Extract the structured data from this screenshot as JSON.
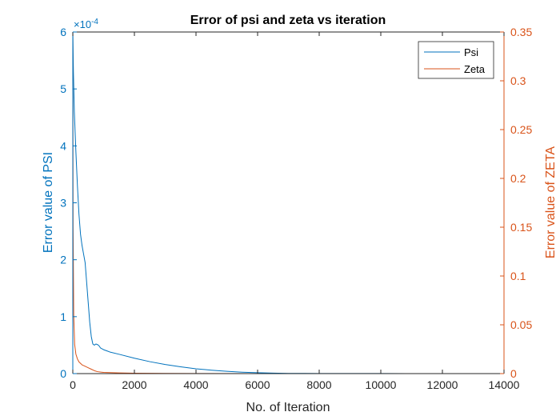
{
  "chart_data": {
    "type": "line",
    "title": "Error of psi and zeta vs iteration",
    "xlabel": "No. of Iteration",
    "ylabel_left": "Error value of PSI",
    "ylabel_right": "Error value of ZETA",
    "left_exponent_base": "×10",
    "left_exponent_power": "-4",
    "xlim": [
      0,
      14000
    ],
    "ylim_left": [
      0,
      6
    ],
    "ylim_right": [
      0,
      0.35
    ],
    "x_ticks": [
      0,
      2000,
      4000,
      6000,
      8000,
      10000,
      12000,
      14000
    ],
    "x_tick_labels": [
      "0",
      "2000",
      "4000",
      "6000",
      "8000",
      "10000",
      "12000",
      "14000"
    ],
    "y_left_ticks": [
      0,
      1,
      2,
      3,
      4,
      5,
      6
    ],
    "y_left_tick_labels": [
      "0",
      "1",
      "2",
      "3",
      "4",
      "5",
      "6"
    ],
    "y_right_ticks": [
      0,
      0.05,
      0.1,
      0.15,
      0.2,
      0.25,
      0.3,
      0.35
    ],
    "y_right_tick_labels": [
      "0",
      "0.05",
      "0.1",
      "0.15",
      "0.2",
      "0.25",
      "0.3",
      "0.35"
    ],
    "grid": false,
    "legend_position": "top-right",
    "series": [
      {
        "name": "Psi",
        "axis": "left",
        "color": "#0072BD",
        "x": [
          1,
          20,
          50,
          100,
          150,
          200,
          250,
          300,
          350,
          400,
          450,
          500,
          550,
          600,
          650,
          700,
          750,
          800,
          850,
          900,
          1000,
          1100,
          1200,
          1500,
          2000,
          2500,
          3000,
          3500,
          4000,
          4500,
          5000,
          5500,
          6000,
          6500,
          7000,
          8000,
          10000,
          12000,
          13700
        ],
        "y": [
          6.0,
          5.3,
          4.6,
          3.9,
          3.3,
          2.8,
          2.45,
          2.25,
          2.1,
          1.95,
          1.6,
          1.25,
          0.9,
          0.65,
          0.52,
          0.5,
          0.52,
          0.51,
          0.49,
          0.45,
          0.42,
          0.4,
          0.38,
          0.34,
          0.27,
          0.21,
          0.16,
          0.12,
          0.085,
          0.06,
          0.04,
          0.025,
          0.015,
          0.008,
          0.004,
          0.002,
          0.001,
          0.0005,
          0.0003
        ]
      },
      {
        "name": "Zeta",
        "axis": "right",
        "color": "#D95319",
        "x": [
          1,
          10,
          30,
          60,
          100,
          150,
          200,
          300,
          400,
          500,
          600,
          700,
          800,
          1000,
          1500,
          2000,
          3000,
          4000,
          6000,
          8000,
          10000,
          12000,
          13700
        ],
        "y": [
          0.35,
          0.15,
          0.06,
          0.03,
          0.02,
          0.015,
          0.012,
          0.009,
          0.0075,
          0.006,
          0.0045,
          0.003,
          0.002,
          0.0012,
          0.0007,
          0.0004,
          0.0002,
          0.0001,
          5e-05,
          3e-05,
          2e-05,
          1e-05,
          1e-05
        ]
      }
    ]
  },
  "colors": {
    "left_axis": "#0072BD",
    "right_axis": "#D95319",
    "bottom_axis": "#262626"
  }
}
